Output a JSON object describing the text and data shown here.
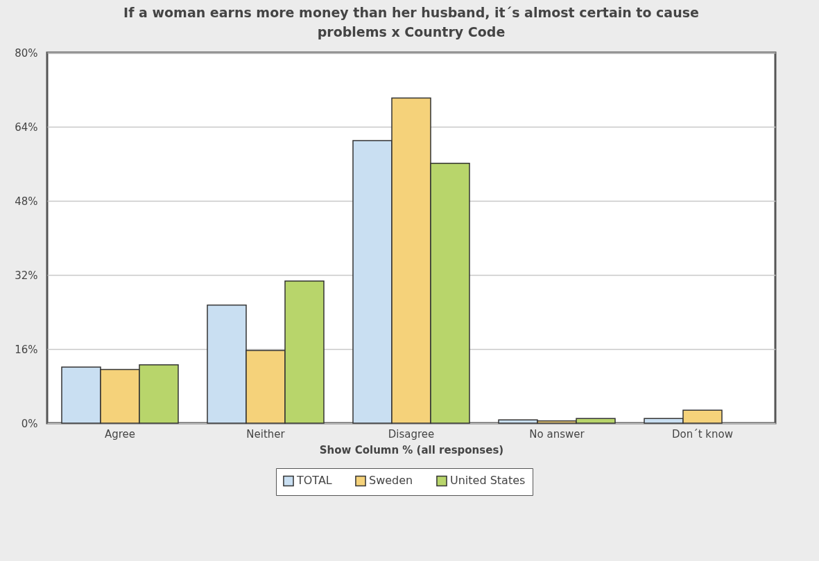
{
  "chart_data": {
    "type": "bar",
    "title": "If a woman earns more money than her husband, it´s almost certain to cause problems x Country Code",
    "xlabel": "Show Column % (all responses)",
    "categories": [
      "Agree",
      "Neither",
      "Disagree",
      "No answer",
      "Don´t know"
    ],
    "series": [
      {
        "name": "TOTAL",
        "color": "#c9dff2",
        "values": [
          12.1,
          25.5,
          61.0,
          0.7,
          1.0
        ]
      },
      {
        "name": "Sweden",
        "color": "#f5d27a",
        "values": [
          11.6,
          15.7,
          70.2,
          0.5,
          2.8
        ]
      },
      {
        "name": "United States",
        "color": "#b8d56b",
        "values": [
          12.6,
          30.7,
          56.1,
          1.0,
          null
        ]
      }
    ],
    "ylim": [
      0,
      80
    ],
    "yticks": [
      {
        "value": 0,
        "label": "0%"
      },
      {
        "value": 16,
        "label": "16%"
      },
      {
        "value": 32,
        "label": "32%"
      },
      {
        "value": 48,
        "label": "48%"
      },
      {
        "value": 64,
        "label": "64%"
      },
      {
        "value": 80,
        "label": "80%"
      }
    ],
    "grid": "y",
    "legend": "bottom"
  }
}
